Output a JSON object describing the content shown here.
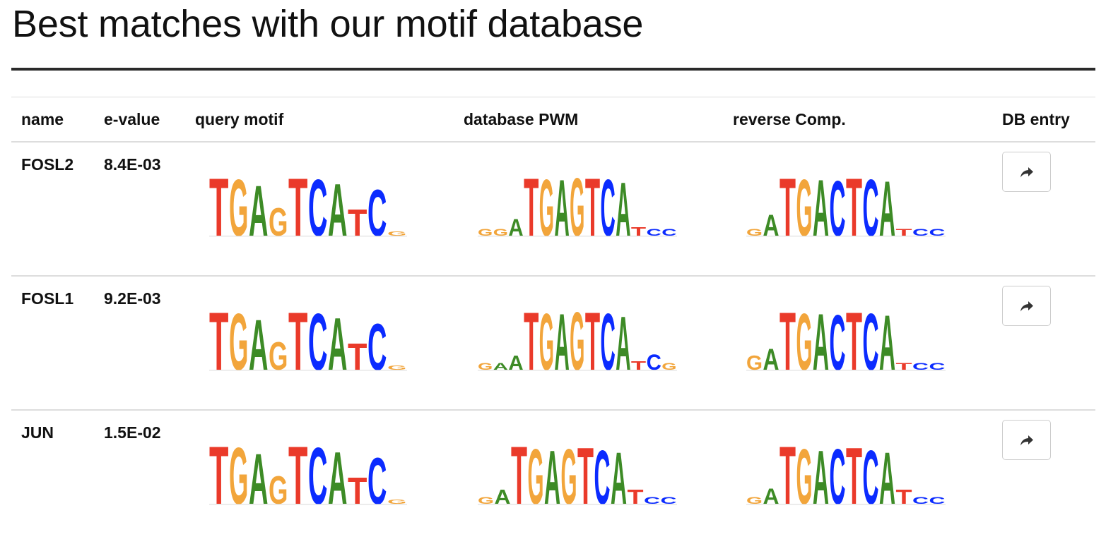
{
  "page": {
    "title": "Best matches with our motif database"
  },
  "table": {
    "headers": {
      "name": "name",
      "evalue": "e-value",
      "query": "query motif",
      "database": "database PWM",
      "reverse": "reverse Comp.",
      "dbentry": "DB entry"
    },
    "rows": [
      {
        "name": "FOSL2",
        "evalue": "8.4E-03",
        "query_logo": [
          {
            "b": "T",
            "h": 0.82
          },
          {
            "b": "G",
            "h": 0.8
          },
          {
            "b": "A",
            "h": 0.72
          },
          {
            "b": "G",
            "h": 0.4
          },
          {
            "b": "T",
            "h": 0.82
          },
          {
            "b": "C",
            "h": 0.8
          },
          {
            "b": "A",
            "h": 0.74
          },
          {
            "b": "T",
            "h": 0.38
          },
          {
            "b": "C",
            "h": 0.66
          },
          {
            "b": "G",
            "h": 0.06
          }
        ],
        "db_logo": [
          {
            "b": "G",
            "h": 0.1
          },
          {
            "b": "G",
            "h": 0.1
          },
          {
            "b": "A",
            "h": 0.24
          },
          {
            "b": "T",
            "h": 0.82
          },
          {
            "b": "G",
            "h": 0.8
          },
          {
            "b": "A",
            "h": 0.8
          },
          {
            "b": "G",
            "h": 0.82
          },
          {
            "b": "T",
            "h": 0.82
          },
          {
            "b": "C",
            "h": 0.8
          },
          {
            "b": "A",
            "h": 0.76
          },
          {
            "b": "T",
            "h": 0.12
          },
          {
            "b": "C",
            "h": 0.1
          },
          {
            "b": "C",
            "h": 0.1
          }
        ],
        "rc_logo": [
          {
            "b": "G",
            "h": 0.1
          },
          {
            "b": "A",
            "h": 0.3
          },
          {
            "b": "T",
            "h": 0.82
          },
          {
            "b": "G",
            "h": 0.8
          },
          {
            "b": "A",
            "h": 0.8
          },
          {
            "b": "C",
            "h": 0.78
          },
          {
            "b": "T",
            "h": 0.82
          },
          {
            "b": "C",
            "h": 0.8
          },
          {
            "b": "A",
            "h": 0.78
          },
          {
            "b": "T",
            "h": 0.1
          },
          {
            "b": "C",
            "h": 0.1
          },
          {
            "b": "C",
            "h": 0.1
          }
        ]
      },
      {
        "name": "FOSL1",
        "evalue": "9.2E-03",
        "query_logo": [
          {
            "b": "T",
            "h": 0.82
          },
          {
            "b": "G",
            "h": 0.8
          },
          {
            "b": "A",
            "h": 0.72
          },
          {
            "b": "G",
            "h": 0.4
          },
          {
            "b": "T",
            "h": 0.82
          },
          {
            "b": "C",
            "h": 0.8
          },
          {
            "b": "A",
            "h": 0.74
          },
          {
            "b": "T",
            "h": 0.38
          },
          {
            "b": "C",
            "h": 0.66
          },
          {
            "b": "G",
            "h": 0.06
          }
        ],
        "db_logo": [
          {
            "b": "G",
            "h": 0.1
          },
          {
            "b": "A",
            "h": 0.1
          },
          {
            "b": "A",
            "h": 0.2
          },
          {
            "b": "T",
            "h": 0.82
          },
          {
            "b": "G",
            "h": 0.8
          },
          {
            "b": "A",
            "h": 0.8
          },
          {
            "b": "G",
            "h": 0.82
          },
          {
            "b": "T",
            "h": 0.82
          },
          {
            "b": "C",
            "h": 0.8
          },
          {
            "b": "A",
            "h": 0.76
          },
          {
            "b": "T",
            "h": 0.12
          },
          {
            "b": "C",
            "h": 0.22
          },
          {
            "b": "G",
            "h": 0.1
          }
        ],
        "rc_logo": [
          {
            "b": "G",
            "h": 0.2
          },
          {
            "b": "A",
            "h": 0.3
          },
          {
            "b": "T",
            "h": 0.82
          },
          {
            "b": "G",
            "h": 0.8
          },
          {
            "b": "A",
            "h": 0.8
          },
          {
            "b": "C",
            "h": 0.78
          },
          {
            "b": "T",
            "h": 0.82
          },
          {
            "b": "C",
            "h": 0.8
          },
          {
            "b": "A",
            "h": 0.78
          },
          {
            "b": "T",
            "h": 0.1
          },
          {
            "b": "C",
            "h": 0.1
          },
          {
            "b": "C",
            "h": 0.1
          }
        ]
      },
      {
        "name": "JUN",
        "evalue": "1.5E-02",
        "query_logo": [
          {
            "b": "T",
            "h": 0.82
          },
          {
            "b": "G",
            "h": 0.8
          },
          {
            "b": "A",
            "h": 0.72
          },
          {
            "b": "G",
            "h": 0.4
          },
          {
            "b": "T",
            "h": 0.82
          },
          {
            "b": "C",
            "h": 0.8
          },
          {
            "b": "A",
            "h": 0.74
          },
          {
            "b": "T",
            "h": 0.38
          },
          {
            "b": "C",
            "h": 0.66
          },
          {
            "b": "G",
            "h": 0.06
          }
        ],
        "db_logo": [
          {
            "b": "G",
            "h": 0.1
          },
          {
            "b": "A",
            "h": 0.2
          },
          {
            "b": "T",
            "h": 0.82
          },
          {
            "b": "G",
            "h": 0.78
          },
          {
            "b": "A",
            "h": 0.76
          },
          {
            "b": "G",
            "h": 0.78
          },
          {
            "b": "T",
            "h": 0.8
          },
          {
            "b": "C",
            "h": 0.76
          },
          {
            "b": "A",
            "h": 0.74
          },
          {
            "b": "T",
            "h": 0.2
          },
          {
            "b": "C",
            "h": 0.1
          },
          {
            "b": "C",
            "h": 0.1
          }
        ],
        "rc_logo": [
          {
            "b": "G",
            "h": 0.1
          },
          {
            "b": "A",
            "h": 0.22
          },
          {
            "b": "T",
            "h": 0.82
          },
          {
            "b": "G",
            "h": 0.78
          },
          {
            "b": "A",
            "h": 0.76
          },
          {
            "b": "C",
            "h": 0.78
          },
          {
            "b": "T",
            "h": 0.8
          },
          {
            "b": "C",
            "h": 0.76
          },
          {
            "b": "A",
            "h": 0.74
          },
          {
            "b": "T",
            "h": 0.2
          },
          {
            "b": "C",
            "h": 0.1
          },
          {
            "b": "C",
            "h": 0.1
          }
        ]
      }
    ]
  },
  "colors": {
    "A": "#3d8b26",
    "C": "#0b2bff",
    "G": "#f2a53b",
    "T": "#ea3a2a",
    "rule": "#2a2a2a",
    "grid": "#dddddd"
  },
  "icons": {
    "db_entry": "share-arrow-icon"
  }
}
